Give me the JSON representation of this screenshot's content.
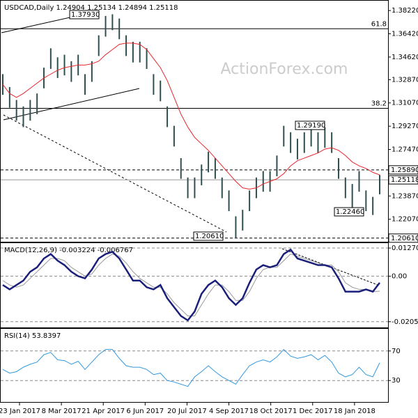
{
  "chart_data": [
    {
      "type": "bar",
      "title": "USDCAD,Daily  1.24904 1.25134 1.24894 1.25118",
      "watermark": "ActionForex.com",
      "ylim": [
        1.2033,
        1.3898
      ],
      "yticks": [
        {
          "value": 1.3822,
          "label": "1.38220"
        },
        {
          "value": 1.3642,
          "label": "1.36420"
        },
        {
          "value": 1.3462,
          "label": "1.34620"
        },
        {
          "value": 1.3287,
          "label": "1.32870"
        },
        {
          "value": 1.3107,
          "label": "1.31070"
        },
        {
          "value": 1.2927,
          "label": "1.29270"
        },
        {
          "value": 1.2747,
          "label": "1.27470"
        },
        {
          "value": 1.2387,
          "label": "1.23870"
        },
        {
          "value": 1.2207,
          "label": "1.22070"
        }
      ],
      "series": [
        {
          "name": "high",
          "color": "#2f4f4f",
          "values": [
            1.333,
            1.323,
            1.313,
            1.308,
            1.313,
            1.318,
            1.338,
            1.353,
            1.346,
            1.348,
            1.343,
            1.348,
            1.333,
            1.343,
            1.363,
            1.378,
            1.3793,
            1.376,
            1.363,
            1.358,
            1.358,
            1.353,
            1.333,
            1.328,
            1.308,
            1.293,
            1.268,
            1.253,
            1.253,
            1.263,
            1.273,
            1.268,
            1.253,
            1.243,
            1.223,
            1.228,
            1.243,
            1.253,
            1.258,
            1.258,
            1.27,
            1.293,
            1.288,
            1.283,
            1.288,
            1.293,
            1.288,
            1.2919,
            1.288,
            1.268,
            1.253,
            1.248,
            1.258,
            1.243,
            1.238,
            1.255
          ]
        },
        {
          "name": "low",
          "color": "#2f4f4f",
          "values": [
            1.317,
            1.307,
            1.297,
            1.292,
            1.297,
            1.302,
            1.322,
            1.337,
            1.33,
            1.332,
            1.327,
            1.332,
            1.317,
            1.327,
            1.347,
            1.362,
            1.367,
            1.36,
            1.347,
            1.342,
            1.342,
            1.337,
            1.317,
            1.312,
            1.292,
            1.277,
            1.252,
            1.237,
            1.237,
            1.247,
            1.257,
            1.252,
            1.237,
            1.227,
            1.2061,
            1.212,
            1.227,
            1.237,
            1.242,
            1.242,
            1.254,
            1.277,
            1.272,
            1.267,
            1.272,
            1.277,
            1.272,
            1.276,
            1.272,
            1.252,
            1.237,
            1.2246,
            1.242,
            1.227,
            1.224,
            1.24
          ]
        },
        {
          "name": "ma",
          "color": "#e8262b",
          "values": [
            1.325,
            1.318,
            1.315,
            1.318,
            1.322,
            1.326,
            1.33,
            1.333,
            1.336,
            1.338,
            1.339,
            1.34,
            1.34,
            1.341,
            1.343,
            1.348,
            1.352,
            1.356,
            1.357,
            1.357,
            1.356,
            1.352,
            1.345,
            1.338,
            1.328,
            1.315,
            1.302,
            1.292,
            1.284,
            1.279,
            1.274,
            1.268,
            1.262,
            1.256,
            1.25,
            1.245,
            1.244,
            1.245,
            1.248,
            1.25,
            1.252,
            1.256,
            1.262,
            1.266,
            1.268,
            1.27,
            1.272,
            1.275,
            1.276,
            1.274,
            1.27,
            1.265,
            1.262,
            1.26,
            1.257,
            1.255
          ]
        }
      ],
      "annotations": [
        "1.37930",
        "1.29190",
        "1.22460",
        "1.20610"
      ],
      "fib_lines": [
        {
          "value": 1.3681,
          "label": "61.8"
        },
        {
          "value": 1.3065,
          "label": "38.2"
        }
      ],
      "levels": [
        {
          "value": 1.2589,
          "label": "1.25890",
          "style": "dashed"
        },
        {
          "value": 1.25118,
          "label": "1.25118",
          "style": "solid"
        },
        {
          "value": 1.2061,
          "label": "1.20610",
          "style": "dashed"
        }
      ]
    },
    {
      "type": "line",
      "title": "MACD(12,26,9) -0.003224 -0.006767",
      "ylim": [
        -0.02319,
        0.01493
      ],
      "yticks": [
        0.012707,
        {
          "value": 0,
          "label": "0.00"
        },
        -0.020599
      ],
      "series": [
        {
          "name": "macd",
          "color": "#1a1f7a",
          "values": [
            -0.004,
            -0.006,
            -0.004,
            -0.002,
            0.002,
            0.004,
            0.008,
            0.01,
            0.007,
            0.005,
            0.002,
            0,
            -0.001,
            0.003,
            0.008,
            0.01,
            0.011,
            0.008,
            0.003,
            -0.002,
            -0.002,
            -0.005,
            -0.006,
            -0.004,
            -0.01,
            -0.014,
            -0.018,
            -0.02,
            -0.016,
            -0.008,
            -0.004,
            -0.002,
            -0.005,
            -0.01,
            -0.013,
            -0.01,
            -0.003,
            0.003,
            0.005,
            0.004,
            0.005,
            0.01,
            0.012,
            0.008,
            0.007,
            0.006,
            0.005,
            0.005,
            0.004,
            -0.001,
            -0.007,
            -0.007,
            -0.007,
            -0.006,
            -0.007,
            -0.003
          ]
        },
        {
          "name": "signal",
          "color": "#999999",
          "values": [
            -0.002,
            -0.004,
            -0.005,
            -0.004,
            -0.001,
            0.002,
            0.005,
            0.008,
            0.008,
            0.007,
            0.004,
            0.002,
            0,
            0.001,
            0.005,
            0.008,
            0.01,
            0.009,
            0.006,
            0.002,
            -0.001,
            -0.003,
            -0.005,
            -0.005,
            -0.008,
            -0.012,
            -0.015,
            -0.018,
            -0.018,
            -0.013,
            -0.008,
            -0.004,
            -0.004,
            -0.007,
            -0.011,
            -0.011,
            -0.007,
            -0.001,
            0.003,
            0.004,
            0.004,
            0.007,
            0.01,
            0.009,
            0.008,
            0.007,
            0.006,
            0.005,
            0.005,
            0.002,
            -0.003,
            -0.005,
            -0.006,
            -0.006,
            -0.007,
            -0.0068
          ]
        }
      ]
    },
    {
      "type": "line",
      "title": "RSI(14) 53.8397",
      "ylim": [
        0,
        100
      ],
      "yticks": [
        70,
        30
      ],
      "series": [
        {
          "name": "rsi",
          "color": "#3399dd",
          "values": [
            45,
            40,
            42,
            48,
            52,
            55,
            65,
            68,
            58,
            57,
            52,
            56,
            45,
            55,
            65,
            72,
            72,
            60,
            50,
            48,
            48,
            45,
            38,
            40,
            30,
            28,
            25,
            22,
            35,
            42,
            50,
            42,
            35,
            30,
            25,
            38,
            50,
            55,
            58,
            55,
            62,
            72,
            63,
            60,
            62,
            65,
            58,
            64,
            55,
            40,
            35,
            38,
            48,
            38,
            35,
            54
          ]
        }
      ],
      "x_labels": [
        "23 Jan 2017",
        "8 Mar 2017",
        "21 Apr 2017",
        "6 Jun 2017",
        "20 Jul 2017",
        "4 Sep 2017",
        "18 Oct 2017",
        "1 Dec 2017",
        "18 Jan 2018"
      ]
    }
  ]
}
